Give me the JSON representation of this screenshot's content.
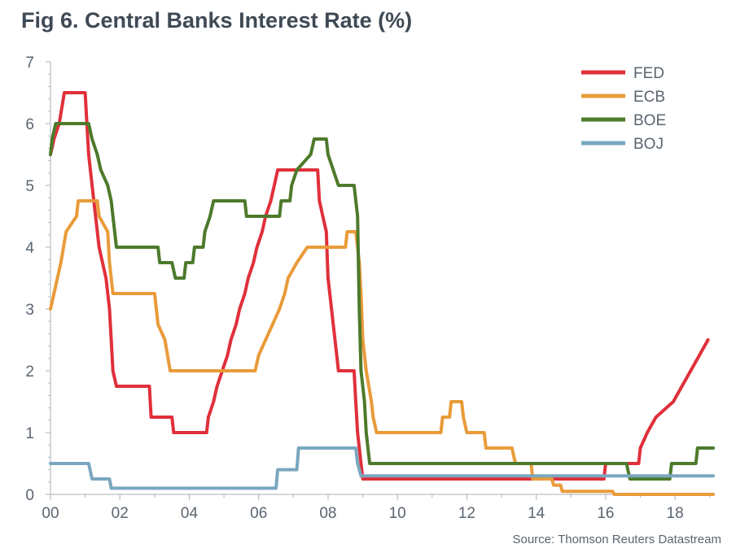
{
  "title": "Fig 6. Central Banks Interest Rate (%)",
  "source": "Source: Thomson Reuters Datastream",
  "chart_data": {
    "type": "line",
    "title": "Fig 6. Central Banks Interest Rate (%)",
    "xlabel": "",
    "ylabel": "",
    "xlim": [
      2000,
      2019.1
    ],
    "ylim": [
      0,
      7
    ],
    "x_ticks": [
      2000,
      2002,
      2004,
      2006,
      2008,
      2010,
      2012,
      2014,
      2016,
      2018
    ],
    "x_tick_labels": [
      "00",
      "02",
      "04",
      "06",
      "08",
      "10",
      "12",
      "14",
      "16",
      "18"
    ],
    "y_ticks": [
      0,
      1,
      2,
      3,
      4,
      5,
      6,
      7
    ],
    "y_tick_labels": [
      "0",
      "1",
      "2",
      "3",
      "4",
      "5",
      "6",
      "7"
    ],
    "grid": false,
    "legend_position": "top-right",
    "series": [
      {
        "name": "FED",
        "color": "#e0303b",
        "points": [
          [
            2000.0,
            5.5
          ],
          [
            2000.1,
            5.75
          ],
          [
            2000.25,
            6.0
          ],
          [
            2000.4,
            6.5
          ],
          [
            2001.0,
            6.5
          ],
          [
            2001.05,
            6.0
          ],
          [
            2001.1,
            5.5
          ],
          [
            2001.2,
            5.0
          ],
          [
            2001.3,
            4.5
          ],
          [
            2001.4,
            4.0
          ],
          [
            2001.5,
            3.75
          ],
          [
            2001.6,
            3.5
          ],
          [
            2001.7,
            3.0
          ],
          [
            2001.75,
            2.5
          ],
          [
            2001.8,
            2.0
          ],
          [
            2001.9,
            1.75
          ],
          [
            2002.85,
            1.75
          ],
          [
            2002.9,
            1.25
          ],
          [
            2003.5,
            1.25
          ],
          [
            2003.55,
            1.0
          ],
          [
            2004.5,
            1.0
          ],
          [
            2004.55,
            1.25
          ],
          [
            2004.7,
            1.5
          ],
          [
            2004.8,
            1.75
          ],
          [
            2004.95,
            2.0
          ],
          [
            2005.1,
            2.25
          ],
          [
            2005.2,
            2.5
          ],
          [
            2005.35,
            2.75
          ],
          [
            2005.45,
            3.0
          ],
          [
            2005.6,
            3.25
          ],
          [
            2005.7,
            3.5
          ],
          [
            2005.85,
            3.75
          ],
          [
            2005.95,
            4.0
          ],
          [
            2006.1,
            4.25
          ],
          [
            2006.2,
            4.5
          ],
          [
            2006.35,
            4.75
          ],
          [
            2006.45,
            5.0
          ],
          [
            2006.55,
            5.25
          ],
          [
            2007.7,
            5.25
          ],
          [
            2007.75,
            4.75
          ],
          [
            2007.85,
            4.5
          ],
          [
            2007.95,
            4.25
          ],
          [
            2008.0,
            3.5
          ],
          [
            2008.1,
            3.0
          ],
          [
            2008.25,
            2.25
          ],
          [
            2008.3,
            2.0
          ],
          [
            2008.75,
            2.0
          ],
          [
            2008.8,
            1.5
          ],
          [
            2008.85,
            1.0
          ],
          [
            2008.95,
            0.5
          ],
          [
            2009.0,
            0.25
          ],
          [
            2015.95,
            0.25
          ],
          [
            2016.0,
            0.5
          ],
          [
            2016.95,
            0.5
          ],
          [
            2017.0,
            0.75
          ],
          [
            2017.2,
            1.0
          ],
          [
            2017.45,
            1.25
          ],
          [
            2017.95,
            1.5
          ],
          [
            2018.2,
            1.75
          ],
          [
            2018.45,
            2.0
          ],
          [
            2018.7,
            2.25
          ],
          [
            2018.95,
            2.5
          ]
        ]
      },
      {
        "name": "ECB",
        "color": "#e99b3a",
        "points": [
          [
            2000.0,
            3.0
          ],
          [
            2000.1,
            3.25
          ],
          [
            2000.2,
            3.5
          ],
          [
            2000.3,
            3.75
          ],
          [
            2000.45,
            4.25
          ],
          [
            2000.75,
            4.5
          ],
          [
            2000.8,
            4.75
          ],
          [
            2001.35,
            4.75
          ],
          [
            2001.4,
            4.5
          ],
          [
            2001.65,
            4.25
          ],
          [
            2001.7,
            3.75
          ],
          [
            2001.8,
            3.25
          ],
          [
            2003.0,
            3.25
          ],
          [
            2003.1,
            2.75
          ],
          [
            2003.3,
            2.5
          ],
          [
            2003.45,
            2.0
          ],
          [
            2005.9,
            2.0
          ],
          [
            2006.0,
            2.25
          ],
          [
            2006.2,
            2.5
          ],
          [
            2006.4,
            2.75
          ],
          [
            2006.6,
            3.0
          ],
          [
            2006.75,
            3.25
          ],
          [
            2006.85,
            3.5
          ],
          [
            2007.1,
            3.75
          ],
          [
            2007.4,
            4.0
          ],
          [
            2008.5,
            4.0
          ],
          [
            2008.55,
            4.25
          ],
          [
            2008.8,
            4.25
          ],
          [
            2008.9,
            3.75
          ],
          [
            2008.95,
            3.25
          ],
          [
            2009.0,
            2.5
          ],
          [
            2009.1,
            2.0
          ],
          [
            2009.25,
            1.5
          ],
          [
            2009.3,
            1.25
          ],
          [
            2009.4,
            1.0
          ],
          [
            2011.25,
            1.0
          ],
          [
            2011.3,
            1.25
          ],
          [
            2011.5,
            1.25
          ],
          [
            2011.55,
            1.5
          ],
          [
            2011.85,
            1.5
          ],
          [
            2011.9,
            1.25
          ],
          [
            2012.0,
            1.0
          ],
          [
            2012.5,
            1.0
          ],
          [
            2012.55,
            0.75
          ],
          [
            2013.3,
            0.75
          ],
          [
            2013.4,
            0.5
          ],
          [
            2013.85,
            0.5
          ],
          [
            2013.9,
            0.25
          ],
          [
            2014.45,
            0.25
          ],
          [
            2014.5,
            0.15
          ],
          [
            2014.7,
            0.15
          ],
          [
            2014.75,
            0.05
          ],
          [
            2016.2,
            0.05
          ],
          [
            2016.25,
            0.0
          ],
          [
            2019.1,
            0.0
          ]
        ]
      },
      {
        "name": "BOE",
        "color": "#4d7a2b",
        "points": [
          [
            2000.0,
            5.5
          ],
          [
            2000.05,
            5.75
          ],
          [
            2000.15,
            6.0
          ],
          [
            2001.1,
            6.0
          ],
          [
            2001.2,
            5.75
          ],
          [
            2001.35,
            5.5
          ],
          [
            2001.45,
            5.25
          ],
          [
            2001.65,
            5.0
          ],
          [
            2001.75,
            4.75
          ],
          [
            2001.8,
            4.5
          ],
          [
            2001.9,
            4.0
          ],
          [
            2003.1,
            4.0
          ],
          [
            2003.15,
            3.75
          ],
          [
            2003.5,
            3.75
          ],
          [
            2003.6,
            3.5
          ],
          [
            2003.85,
            3.5
          ],
          [
            2003.9,
            3.75
          ],
          [
            2004.1,
            3.75
          ],
          [
            2004.15,
            4.0
          ],
          [
            2004.4,
            4.0
          ],
          [
            2004.45,
            4.25
          ],
          [
            2004.6,
            4.5
          ],
          [
            2004.7,
            4.75
          ],
          [
            2005.6,
            4.75
          ],
          [
            2005.65,
            4.5
          ],
          [
            2006.6,
            4.5
          ],
          [
            2006.65,
            4.75
          ],
          [
            2006.9,
            4.75
          ],
          [
            2006.95,
            5.0
          ],
          [
            2007.1,
            5.25
          ],
          [
            2007.5,
            5.5
          ],
          [
            2007.6,
            5.75
          ],
          [
            2007.95,
            5.75
          ],
          [
            2008.0,
            5.5
          ],
          [
            2008.15,
            5.25
          ],
          [
            2008.3,
            5.0
          ],
          [
            2008.75,
            5.0
          ],
          [
            2008.85,
            4.5
          ],
          [
            2008.9,
            3.0
          ],
          [
            2008.95,
            2.0
          ],
          [
            2009.05,
            1.5
          ],
          [
            2009.1,
            1.0
          ],
          [
            2009.2,
            0.5
          ],
          [
            2016.6,
            0.5
          ],
          [
            2016.7,
            0.25
          ],
          [
            2017.85,
            0.25
          ],
          [
            2017.9,
            0.5
          ],
          [
            2018.6,
            0.5
          ],
          [
            2018.65,
            0.75
          ],
          [
            2019.1,
            0.75
          ]
        ]
      },
      {
        "name": "BOJ",
        "color": "#7aa7c0",
        "points": [
          [
            2000.0,
            0.5
          ],
          [
            2001.1,
            0.5
          ],
          [
            2001.2,
            0.25
          ],
          [
            2001.7,
            0.25
          ],
          [
            2001.75,
            0.1
          ],
          [
            2006.5,
            0.1
          ],
          [
            2006.55,
            0.4
          ],
          [
            2007.1,
            0.4
          ],
          [
            2007.15,
            0.75
          ],
          [
            2008.8,
            0.75
          ],
          [
            2008.85,
            0.5
          ],
          [
            2008.95,
            0.3
          ],
          [
            2019.1,
            0.3
          ]
        ]
      }
    ]
  }
}
